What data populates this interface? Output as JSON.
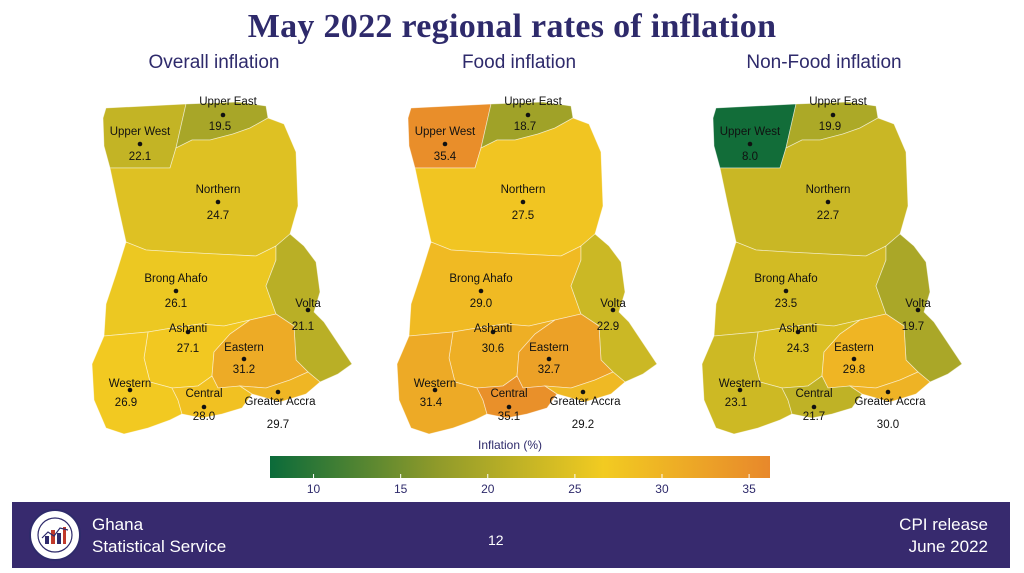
{
  "title": "May 2022 regional rates of inflation",
  "footer": {
    "org_line1": "Ghana",
    "org_line2": "Statistical Service",
    "page": "12",
    "release_line1": "CPI release",
    "release_line2": "June  2022",
    "logo_text": "STATISTICAL SERVICE GHANA"
  },
  "legend": {
    "title": "Inflation  (%)",
    "ticks": [
      10,
      15,
      20,
      25,
      30,
      35
    ],
    "range": [
      7.5,
      36.2
    ],
    "colors": [
      "#0b6b3a",
      "#8f9a2a",
      "#f2cb21",
      "#e8882b"
    ]
  },
  "chart_data": [
    {
      "type": "choropleth",
      "title": "Overall inflation",
      "regions": [
        {
          "name": "Upper West",
          "value": 22.1
        },
        {
          "name": "Upper East",
          "value": 19.5
        },
        {
          "name": "Northern",
          "value": 24.7
        },
        {
          "name": "Brong Ahafo",
          "value": 26.1
        },
        {
          "name": "Volta",
          "value": 21.1
        },
        {
          "name": "Ashanti",
          "value": 27.1
        },
        {
          "name": "Eastern",
          "value": 31.2
        },
        {
          "name": "Western",
          "value": 26.9
        },
        {
          "name": "Central",
          "value": 28.0
        },
        {
          "name": "Greater Accra",
          "value": 29.7
        }
      ]
    },
    {
      "type": "choropleth",
      "title": "Food inflation",
      "regions": [
        {
          "name": "Upper West",
          "value": 35.4
        },
        {
          "name": "Upper East",
          "value": 18.7
        },
        {
          "name": "Northern",
          "value": 27.5
        },
        {
          "name": "Brong Ahafo",
          "value": 29.0
        },
        {
          "name": "Volta",
          "value": 22.9
        },
        {
          "name": "Ashanti",
          "value": 30.6
        },
        {
          "name": "Eastern",
          "value": 32.7
        },
        {
          "name": "Western",
          "value": 31.4
        },
        {
          "name": "Central",
          "value": 35.1
        },
        {
          "name": "Greater Accra",
          "value": 29.2
        }
      ]
    },
    {
      "type": "choropleth",
      "title": "Non-Food inflation",
      "regions": [
        {
          "name": "Upper West",
          "value": 8.0
        },
        {
          "name": "Upper East",
          "value": 19.9
        },
        {
          "name": "Northern",
          "value": 22.7
        },
        {
          "name": "Brong Ahafo",
          "value": 23.5
        },
        {
          "name": "Volta",
          "value": 19.7
        },
        {
          "name": "Ashanti",
          "value": 24.3
        },
        {
          "name": "Eastern",
          "value": 29.8
        },
        {
          "name": "Western",
          "value": 23.1
        },
        {
          "name": "Central",
          "value": 21.7
        },
        {
          "name": "Greater Accra",
          "value": 30.0
        }
      ]
    }
  ]
}
